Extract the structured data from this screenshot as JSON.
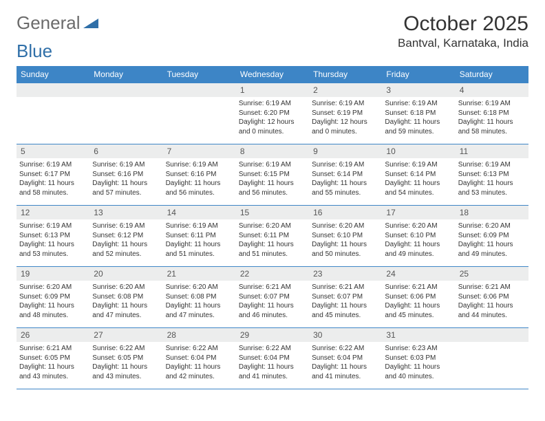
{
  "brand": {
    "word1": "General",
    "word2": "Blue"
  },
  "title": "October 2025",
  "location": "Bantval, Karnataka, India",
  "colors": {
    "header_bg": "#3d85c6",
    "header_text": "#ffffff",
    "daynum_bg": "#eceded",
    "rule": "#3d85c6",
    "logo_blue": "#2f6fa8",
    "logo_gray": "#6b6b6b"
  },
  "weekdays": [
    "Sunday",
    "Monday",
    "Tuesday",
    "Wednesday",
    "Thursday",
    "Friday",
    "Saturday"
  ],
  "weeks": [
    [
      null,
      null,
      null,
      {
        "n": "1",
        "sr": "Sunrise: 6:19 AM",
        "ss": "Sunset: 6:20 PM",
        "d1": "Daylight: 12 hours",
        "d2": "and 0 minutes."
      },
      {
        "n": "2",
        "sr": "Sunrise: 6:19 AM",
        "ss": "Sunset: 6:19 PM",
        "d1": "Daylight: 12 hours",
        "d2": "and 0 minutes."
      },
      {
        "n": "3",
        "sr": "Sunrise: 6:19 AM",
        "ss": "Sunset: 6:18 PM",
        "d1": "Daylight: 11 hours",
        "d2": "and 59 minutes."
      },
      {
        "n": "4",
        "sr": "Sunrise: 6:19 AM",
        "ss": "Sunset: 6:18 PM",
        "d1": "Daylight: 11 hours",
        "d2": "and 58 minutes."
      }
    ],
    [
      {
        "n": "5",
        "sr": "Sunrise: 6:19 AM",
        "ss": "Sunset: 6:17 PM",
        "d1": "Daylight: 11 hours",
        "d2": "and 58 minutes."
      },
      {
        "n": "6",
        "sr": "Sunrise: 6:19 AM",
        "ss": "Sunset: 6:16 PM",
        "d1": "Daylight: 11 hours",
        "d2": "and 57 minutes."
      },
      {
        "n": "7",
        "sr": "Sunrise: 6:19 AM",
        "ss": "Sunset: 6:16 PM",
        "d1": "Daylight: 11 hours",
        "d2": "and 56 minutes."
      },
      {
        "n": "8",
        "sr": "Sunrise: 6:19 AM",
        "ss": "Sunset: 6:15 PM",
        "d1": "Daylight: 11 hours",
        "d2": "and 56 minutes."
      },
      {
        "n": "9",
        "sr": "Sunrise: 6:19 AM",
        "ss": "Sunset: 6:14 PM",
        "d1": "Daylight: 11 hours",
        "d2": "and 55 minutes."
      },
      {
        "n": "10",
        "sr": "Sunrise: 6:19 AM",
        "ss": "Sunset: 6:14 PM",
        "d1": "Daylight: 11 hours",
        "d2": "and 54 minutes."
      },
      {
        "n": "11",
        "sr": "Sunrise: 6:19 AM",
        "ss": "Sunset: 6:13 PM",
        "d1": "Daylight: 11 hours",
        "d2": "and 53 minutes."
      }
    ],
    [
      {
        "n": "12",
        "sr": "Sunrise: 6:19 AM",
        "ss": "Sunset: 6:13 PM",
        "d1": "Daylight: 11 hours",
        "d2": "and 53 minutes."
      },
      {
        "n": "13",
        "sr": "Sunrise: 6:19 AM",
        "ss": "Sunset: 6:12 PM",
        "d1": "Daylight: 11 hours",
        "d2": "and 52 minutes."
      },
      {
        "n": "14",
        "sr": "Sunrise: 6:19 AM",
        "ss": "Sunset: 6:11 PM",
        "d1": "Daylight: 11 hours",
        "d2": "and 51 minutes."
      },
      {
        "n": "15",
        "sr": "Sunrise: 6:20 AM",
        "ss": "Sunset: 6:11 PM",
        "d1": "Daylight: 11 hours",
        "d2": "and 51 minutes."
      },
      {
        "n": "16",
        "sr": "Sunrise: 6:20 AM",
        "ss": "Sunset: 6:10 PM",
        "d1": "Daylight: 11 hours",
        "d2": "and 50 minutes."
      },
      {
        "n": "17",
        "sr": "Sunrise: 6:20 AM",
        "ss": "Sunset: 6:10 PM",
        "d1": "Daylight: 11 hours",
        "d2": "and 49 minutes."
      },
      {
        "n": "18",
        "sr": "Sunrise: 6:20 AM",
        "ss": "Sunset: 6:09 PM",
        "d1": "Daylight: 11 hours",
        "d2": "and 49 minutes."
      }
    ],
    [
      {
        "n": "19",
        "sr": "Sunrise: 6:20 AM",
        "ss": "Sunset: 6:09 PM",
        "d1": "Daylight: 11 hours",
        "d2": "and 48 minutes."
      },
      {
        "n": "20",
        "sr": "Sunrise: 6:20 AM",
        "ss": "Sunset: 6:08 PM",
        "d1": "Daylight: 11 hours",
        "d2": "and 47 minutes."
      },
      {
        "n": "21",
        "sr": "Sunrise: 6:20 AM",
        "ss": "Sunset: 6:08 PM",
        "d1": "Daylight: 11 hours",
        "d2": "and 47 minutes."
      },
      {
        "n": "22",
        "sr": "Sunrise: 6:21 AM",
        "ss": "Sunset: 6:07 PM",
        "d1": "Daylight: 11 hours",
        "d2": "and 46 minutes."
      },
      {
        "n": "23",
        "sr": "Sunrise: 6:21 AM",
        "ss": "Sunset: 6:07 PM",
        "d1": "Daylight: 11 hours",
        "d2": "and 45 minutes."
      },
      {
        "n": "24",
        "sr": "Sunrise: 6:21 AM",
        "ss": "Sunset: 6:06 PM",
        "d1": "Daylight: 11 hours",
        "d2": "and 45 minutes."
      },
      {
        "n": "25",
        "sr": "Sunrise: 6:21 AM",
        "ss": "Sunset: 6:06 PM",
        "d1": "Daylight: 11 hours",
        "d2": "and 44 minutes."
      }
    ],
    [
      {
        "n": "26",
        "sr": "Sunrise: 6:21 AM",
        "ss": "Sunset: 6:05 PM",
        "d1": "Daylight: 11 hours",
        "d2": "and 43 minutes."
      },
      {
        "n": "27",
        "sr": "Sunrise: 6:22 AM",
        "ss": "Sunset: 6:05 PM",
        "d1": "Daylight: 11 hours",
        "d2": "and 43 minutes."
      },
      {
        "n": "28",
        "sr": "Sunrise: 6:22 AM",
        "ss": "Sunset: 6:04 PM",
        "d1": "Daylight: 11 hours",
        "d2": "and 42 minutes."
      },
      {
        "n": "29",
        "sr": "Sunrise: 6:22 AM",
        "ss": "Sunset: 6:04 PM",
        "d1": "Daylight: 11 hours",
        "d2": "and 41 minutes."
      },
      {
        "n": "30",
        "sr": "Sunrise: 6:22 AM",
        "ss": "Sunset: 6:04 PM",
        "d1": "Daylight: 11 hours",
        "d2": "and 41 minutes."
      },
      {
        "n": "31",
        "sr": "Sunrise: 6:23 AM",
        "ss": "Sunset: 6:03 PM",
        "d1": "Daylight: 11 hours",
        "d2": "and 40 minutes."
      },
      null
    ]
  ]
}
